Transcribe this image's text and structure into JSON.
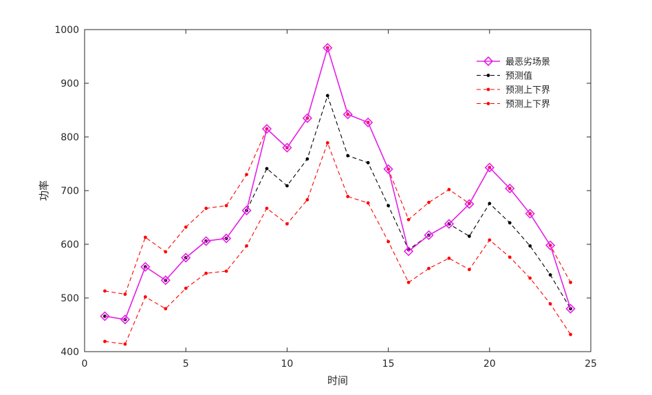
{
  "chart_data": {
    "type": "line",
    "title": "",
    "xlabel": "时间",
    "ylabel": "功率",
    "xlim": [
      0,
      25
    ],
    "ylim": [
      400,
      1000
    ],
    "xticks": [
      0,
      5,
      10,
      15,
      20,
      25
    ],
    "yticks": [
      400,
      500,
      600,
      700,
      800,
      900,
      1000
    ],
    "grid": false,
    "legend_position": "top-right",
    "x": [
      1,
      2,
      3,
      4,
      5,
      6,
      7,
      8,
      9,
      10,
      11,
      12,
      13,
      14,
      15,
      16,
      17,
      18,
      19,
      20,
      21,
      22,
      23,
      24
    ],
    "series": [
      {
        "name": "最恶劣场景",
        "color": "#e61ee6",
        "marker": "diamond",
        "line_style": "solid",
        "values": [
          466,
          460,
          558,
          533,
          575,
          606,
          611,
          663,
          815,
          780,
          835,
          966,
          842,
          827,
          740,
          587,
          617,
          638,
          675,
          743,
          704,
          657,
          598,
          480
        ]
      },
      {
        "name": "预测值",
        "color": "#000000",
        "marker": "dot",
        "line_style": "dashed",
        "values": [
          466,
          460,
          558,
          533,
          575,
          606,
          611,
          663,
          741,
          709,
          759,
          877,
          765,
          752,
          672,
          590,
          617,
          638,
          615,
          676,
          640,
          597,
          543,
          480
        ]
      },
      {
        "name": "预测上下界",
        "color": "#ff0000",
        "marker": "dot",
        "line_style": "dashed",
        "values": [
          513,
          507,
          613,
          586,
          632,
          667,
          672,
          730,
          815,
          780,
          835,
          966,
          842,
          827,
          740,
          646,
          678,
          702,
          676,
          743,
          704,
          657,
          598,
          529
        ]
      },
      {
        "name": "预测上下界",
        "color": "#ff0000",
        "marker": "dot",
        "line_style": "dashed",
        "values": [
          419,
          414,
          502,
          480,
          518,
          546,
          550,
          597,
          667,
          638,
          683,
          789,
          689,
          677,
          605,
          529,
          555,
          574,
          553,
          608,
          576,
          537,
          489,
          432
        ]
      }
    ]
  }
}
